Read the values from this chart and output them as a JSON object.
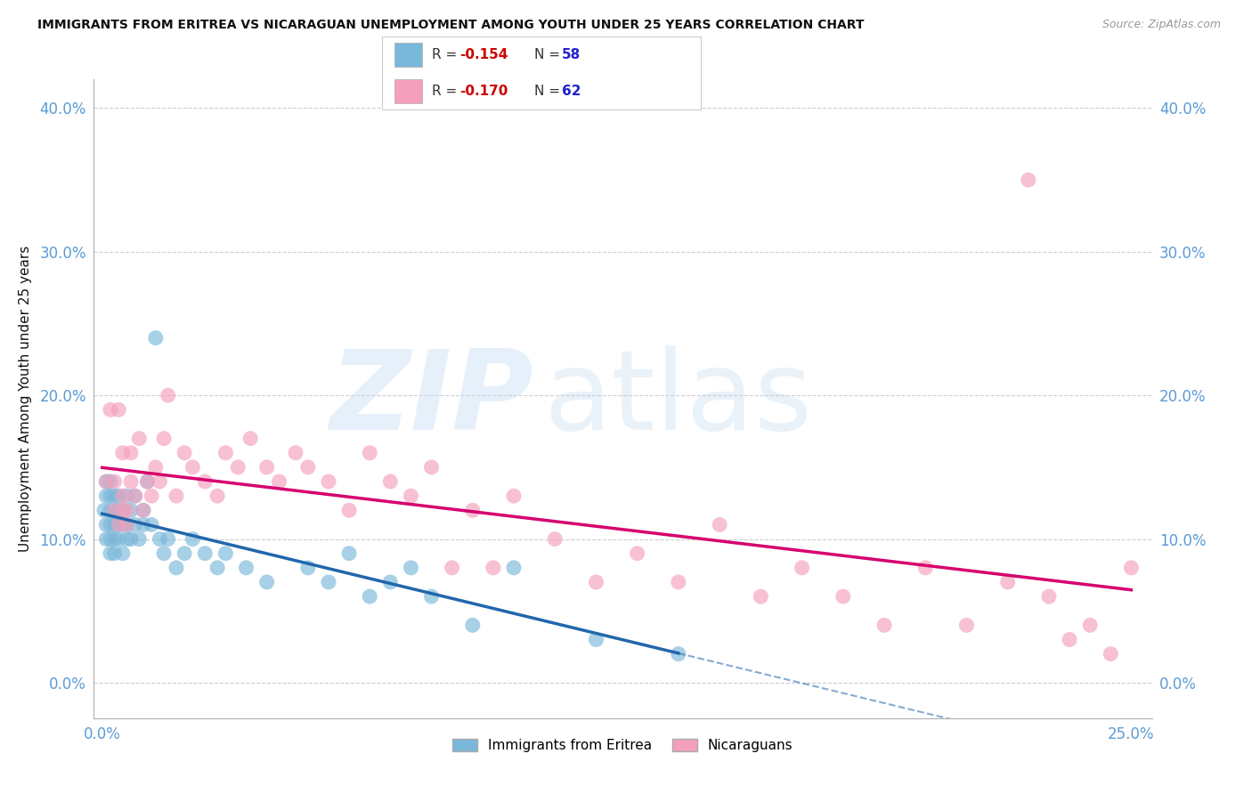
{
  "title": "IMMIGRANTS FROM ERITREA VS NICARAGUAN UNEMPLOYMENT AMONG YOUTH UNDER 25 YEARS CORRELATION CHART",
  "source": "Source: ZipAtlas.com",
  "ylabel": "Unemployment Among Youth under 25 years",
  "xlim": [
    -0.002,
    0.255
  ],
  "ylim": [
    -0.025,
    0.42
  ],
  "xtick_positions": [
    0.0,
    0.25
  ],
  "xtick_labels": [
    "0.0%",
    "25.0%"
  ],
  "ytick_positions": [
    0.0,
    0.1,
    0.2,
    0.3,
    0.4
  ],
  "ytick_labels": [
    "0.0%",
    "10.0%",
    "20.0%",
    "30.0%",
    "40.0%"
  ],
  "legend_labels": [
    "Immigrants from Eritrea",
    "Nicaraguans"
  ],
  "series1_R": "-0.154",
  "series1_N": "58",
  "series2_R": "-0.170",
  "series2_N": "62",
  "color1": "#7ab8d9",
  "color2": "#f4a0bc",
  "trendline1_color": "#2166ac",
  "trendline2_color": "#d6006e",
  "background_color": "#ffffff",
  "tick_color": "#5b9bd5",
  "grid_color": "#cccccc",
  "title_color": "#111111",
  "ylabel_color": "#111111",
  "s1_x": [
    0.0005,
    0.001,
    0.001,
    0.001,
    0.001,
    0.002,
    0.002,
    0.002,
    0.002,
    0.002,
    0.002,
    0.003,
    0.003,
    0.003,
    0.003,
    0.003,
    0.004,
    0.004,
    0.004,
    0.004,
    0.005,
    0.005,
    0.005,
    0.006,
    0.006,
    0.006,
    0.007,
    0.007,
    0.008,
    0.008,
    0.009,
    0.01,
    0.01,
    0.011,
    0.012,
    0.013,
    0.014,
    0.015,
    0.016,
    0.018,
    0.02,
    0.022,
    0.025,
    0.028,
    0.03,
    0.035,
    0.04,
    0.05,
    0.055,
    0.06,
    0.065,
    0.07,
    0.075,
    0.08,
    0.09,
    0.1,
    0.12,
    0.14
  ],
  "s1_y": [
    0.12,
    0.14,
    0.11,
    0.13,
    0.1,
    0.13,
    0.12,
    0.11,
    0.1,
    0.14,
    0.09,
    0.13,
    0.12,
    0.11,
    0.1,
    0.09,
    0.12,
    0.11,
    0.13,
    0.1,
    0.11,
    0.12,
    0.09,
    0.1,
    0.13,
    0.11,
    0.12,
    0.1,
    0.11,
    0.13,
    0.1,
    0.12,
    0.11,
    0.14,
    0.11,
    0.24,
    0.1,
    0.09,
    0.1,
    0.08,
    0.09,
    0.1,
    0.09,
    0.08,
    0.09,
    0.08,
    0.07,
    0.08,
    0.07,
    0.09,
    0.06,
    0.07,
    0.08,
    0.06,
    0.04,
    0.08,
    0.03,
    0.02
  ],
  "s2_x": [
    0.001,
    0.002,
    0.003,
    0.003,
    0.004,
    0.004,
    0.005,
    0.005,
    0.005,
    0.006,
    0.006,
    0.007,
    0.007,
    0.008,
    0.009,
    0.01,
    0.011,
    0.012,
    0.013,
    0.014,
    0.015,
    0.016,
    0.018,
    0.02,
    0.022,
    0.025,
    0.028,
    0.03,
    0.033,
    0.036,
    0.04,
    0.043,
    0.047,
    0.05,
    0.055,
    0.06,
    0.065,
    0.07,
    0.075,
    0.08,
    0.085,
    0.09,
    0.095,
    0.1,
    0.11,
    0.12,
    0.13,
    0.14,
    0.15,
    0.16,
    0.17,
    0.18,
    0.19,
    0.2,
    0.21,
    0.22,
    0.225,
    0.23,
    0.235,
    0.24,
    0.245,
    0.25
  ],
  "s2_y": [
    0.14,
    0.19,
    0.12,
    0.14,
    0.11,
    0.19,
    0.13,
    0.12,
    0.16,
    0.12,
    0.11,
    0.14,
    0.16,
    0.13,
    0.17,
    0.12,
    0.14,
    0.13,
    0.15,
    0.14,
    0.17,
    0.2,
    0.13,
    0.16,
    0.15,
    0.14,
    0.13,
    0.16,
    0.15,
    0.17,
    0.15,
    0.14,
    0.16,
    0.15,
    0.14,
    0.12,
    0.16,
    0.14,
    0.13,
    0.15,
    0.08,
    0.12,
    0.08,
    0.13,
    0.1,
    0.07,
    0.09,
    0.07,
    0.11,
    0.06,
    0.08,
    0.06,
    0.04,
    0.08,
    0.04,
    0.07,
    0.35,
    0.06,
    0.03,
    0.04,
    0.02,
    0.08
  ]
}
